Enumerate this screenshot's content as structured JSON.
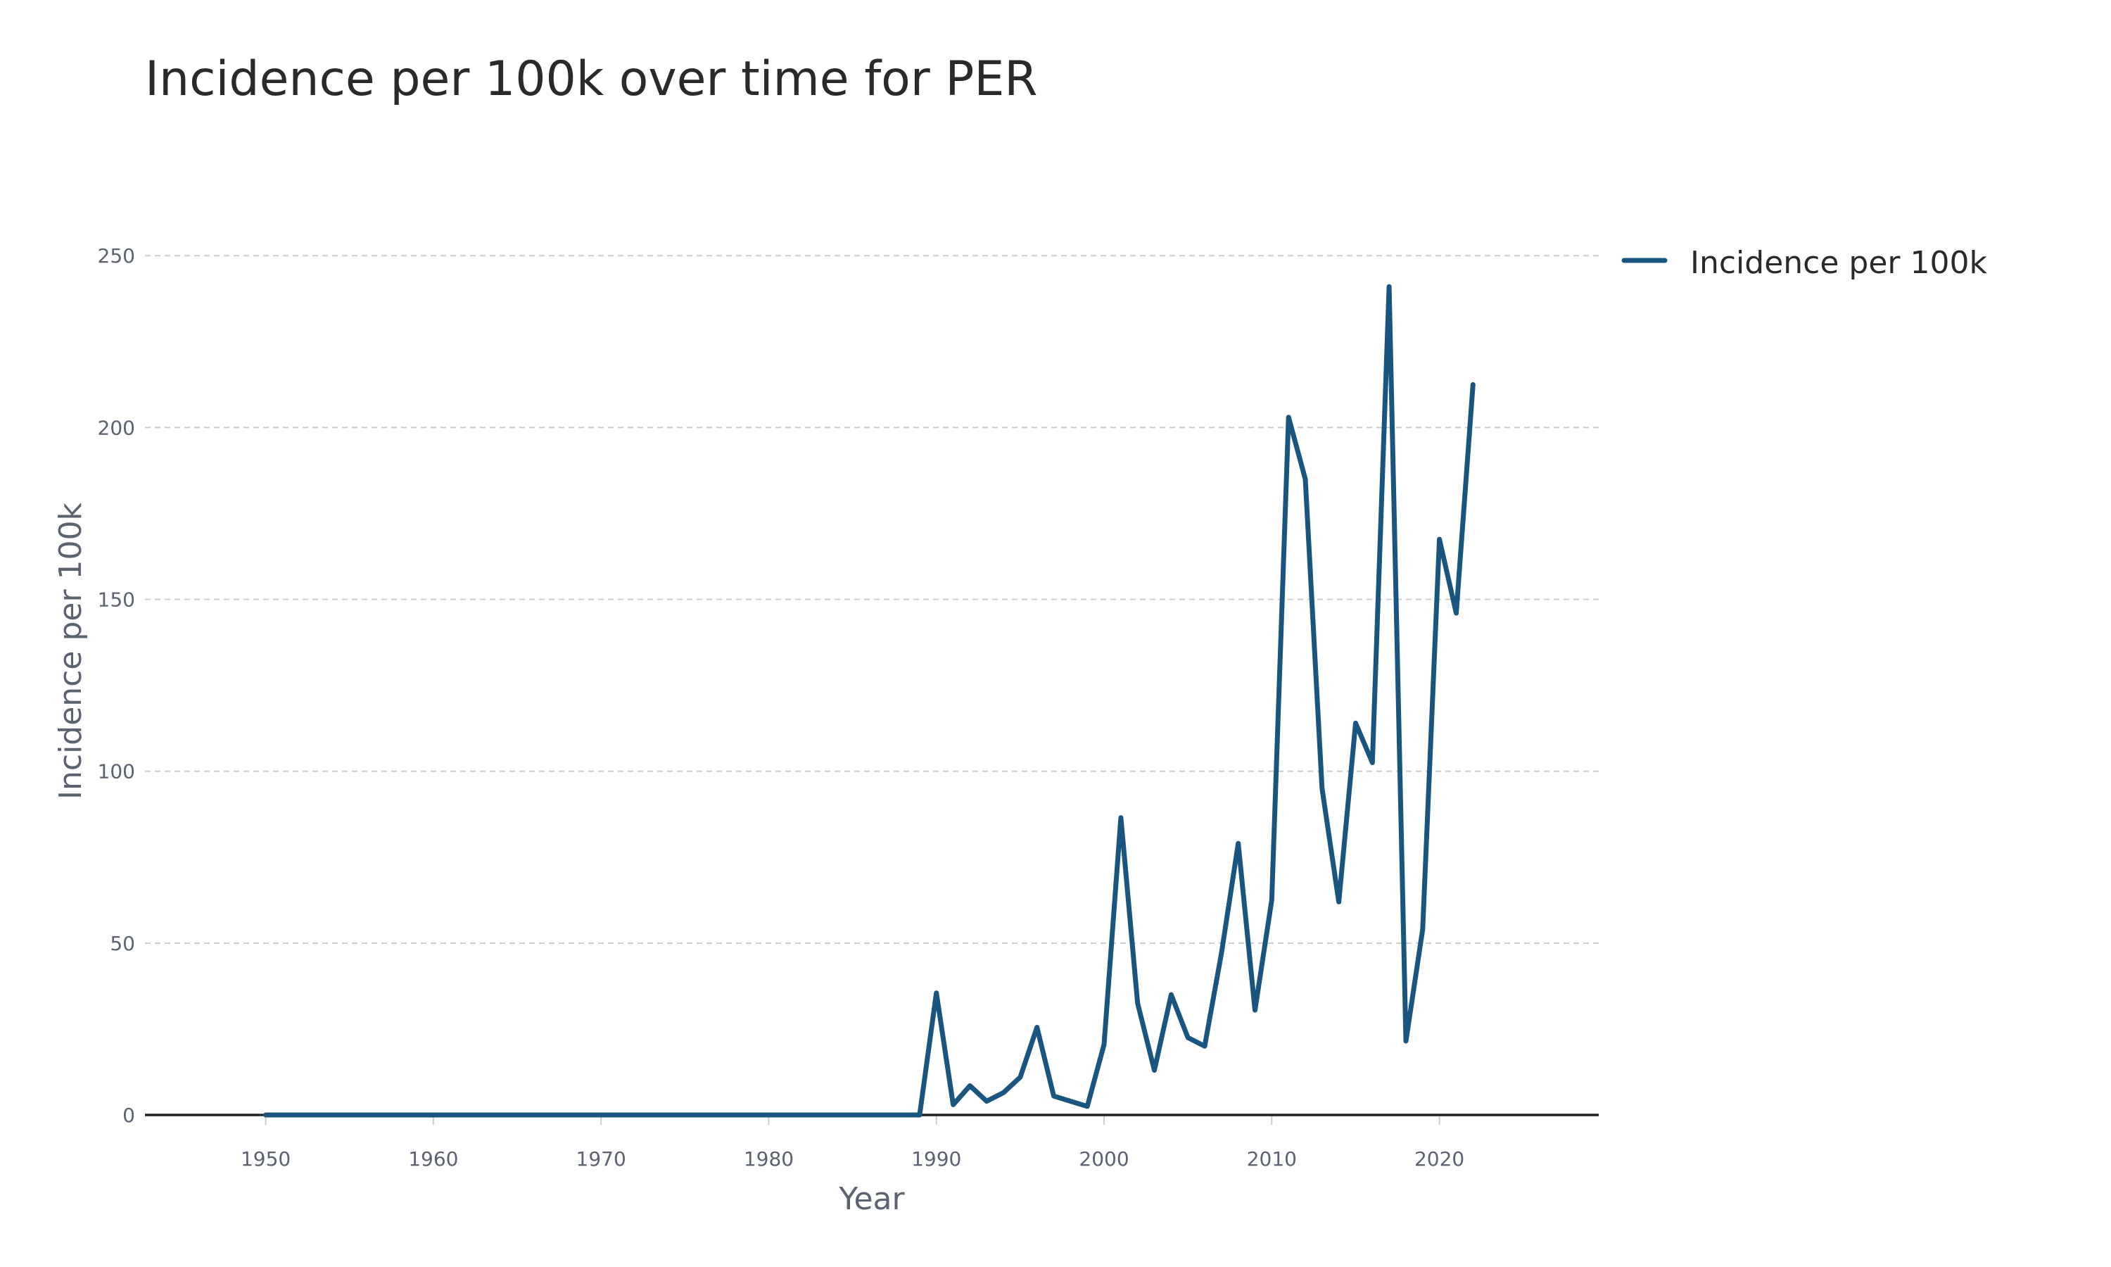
{
  "chart_data": {
    "type": "line",
    "title": "Incidence per 100k over time for PER",
    "xlabel": "Year",
    "ylabel": "Incidence per 100k",
    "xlim": [
      1942.8,
      2029.5
    ],
    "ylim": [
      0,
      265
    ],
    "x_ticks": [
      1950,
      1960,
      1970,
      1980,
      1990,
      2000,
      2010,
      2020
    ],
    "y_ticks": [
      0,
      50,
      100,
      150,
      200,
      250
    ],
    "grid": true,
    "legend": "top-right",
    "colors": {
      "series": "#1a5580",
      "grid": "#cccccc",
      "axis_text": "#5b6270"
    },
    "series": [
      {
        "name": "Incidence per 100k",
        "x": [
          1950,
          1951,
          1952,
          1953,
          1954,
          1955,
          1956,
          1957,
          1958,
          1959,
          1960,
          1961,
          1962,
          1963,
          1964,
          1965,
          1966,
          1967,
          1968,
          1969,
          1970,
          1971,
          1972,
          1973,
          1974,
          1975,
          1976,
          1977,
          1978,
          1979,
          1980,
          1981,
          1982,
          1983,
          1984,
          1985,
          1986,
          1987,
          1988,
          1989,
          1990,
          1991,
          1992,
          1993,
          1994,
          1995,
          1996,
          1997,
          1998,
          1999,
          2000,
          2001,
          2002,
          2003,
          2004,
          2005,
          2006,
          2007,
          2008,
          2009,
          2010,
          2011,
          2012,
          2013,
          2014,
          2015,
          2016,
          2017,
          2018,
          2019,
          2020,
          2021,
          2022
        ],
        "y": [
          0,
          0,
          0,
          0,
          0,
          0,
          0,
          0,
          0,
          0,
          0,
          0,
          0,
          0,
          0,
          0,
          0,
          0,
          0,
          0,
          0,
          0,
          0,
          0,
          0,
          0,
          0,
          0,
          0,
          0,
          0,
          0,
          0,
          0,
          0,
          0,
          0,
          0,
          0,
          0,
          35.5,
          3,
          8.5,
          4,
          6.5,
          11,
          25.5,
          5.5,
          4,
          2.5,
          20.5,
          86.5,
          32.5,
          13,
          35,
          22.5,
          20,
          47,
          79,
          30.5,
          62.5,
          203,
          185,
          95,
          62,
          114,
          102.5,
          241,
          21.5,
          54,
          167.5,
          146,
          212.5
        ]
      }
    ]
  }
}
